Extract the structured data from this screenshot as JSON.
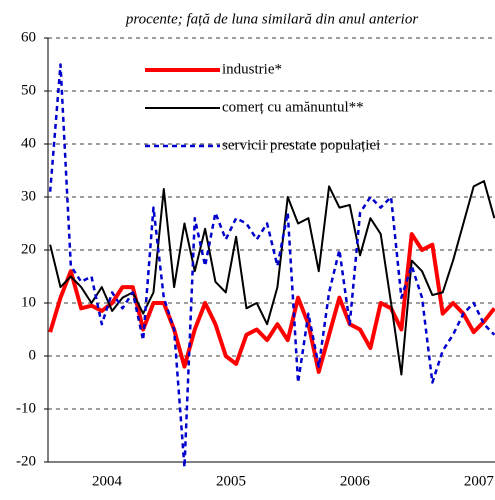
{
  "chart_data": {
    "type": "line",
    "title": "procente; față de luna similară din anul anterior",
    "categories": [
      null,
      null,
      null,
      null,
      null,
      null,
      "2004",
      null,
      null,
      null,
      null,
      null,
      null,
      null,
      null,
      null,
      null,
      null,
      "2005",
      null,
      null,
      null,
      null,
      null,
      null,
      null,
      null,
      null,
      null,
      null,
      "2006",
      null,
      null,
      null,
      null,
      null,
      null,
      null,
      null,
      null,
      null,
      null,
      "2007",
      null
    ],
    "series": [
      {
        "name": "industrie*",
        "color": "#ff0000",
        "dash": "solid",
        "width": 4,
        "values": [
          4.5,
          11,
          16,
          9,
          9.5,
          8.5,
          10,
          13,
          13,
          5,
          10,
          10,
          5,
          -2,
          5,
          10,
          6,
          0,
          -1.5,
          4,
          5,
          3,
          6,
          3,
          11,
          6,
          -3,
          4,
          11,
          6,
          5,
          1.5,
          10,
          9,
          5,
          23,
          20,
          21,
          8,
          10,
          8,
          4.5,
          6.5,
          9
        ]
      },
      {
        "name": "comerț cu amănuntul**",
        "color": "#000000",
        "dash": "solid",
        "width": 2,
        "values": [
          21,
          13,
          15,
          13,
          10,
          13,
          8.5,
          11,
          12,
          8,
          12,
          31.5,
          13,
          25,
          16,
          24,
          14,
          12,
          22.5,
          9,
          10,
          6,
          13,
          30,
          25,
          26,
          16,
          32,
          28,
          28.5,
          19,
          26,
          23,
          10,
          -3.5,
          18,
          16,
          11.5,
          12,
          18,
          25,
          32,
          33,
          26
        ]
      },
      {
        "name": "servicii prestate populației",
        "color": "#0000cc",
        "dash": "dashed",
        "width": 2.5,
        "values": [
          31,
          55,
          17,
          14,
          15,
          6,
          12,
          9,
          12,
          3,
          28,
          11,
          5,
          -21,
          26,
          17,
          27,
          22,
          26,
          25,
          22,
          25,
          17,
          27,
          -5,
          8,
          -2,
          12,
          20,
          6,
          27,
          30,
          28,
          30,
          11,
          17,
          11,
          -5,
          1,
          4,
          8,
          10,
          6,
          4
        ]
      }
    ],
    "ylim": [
      -20,
      60
    ],
    "yticks": [
      -20,
      -10,
      0,
      10,
      20,
      30,
      40,
      50,
      60
    ],
    "grid": true
  }
}
